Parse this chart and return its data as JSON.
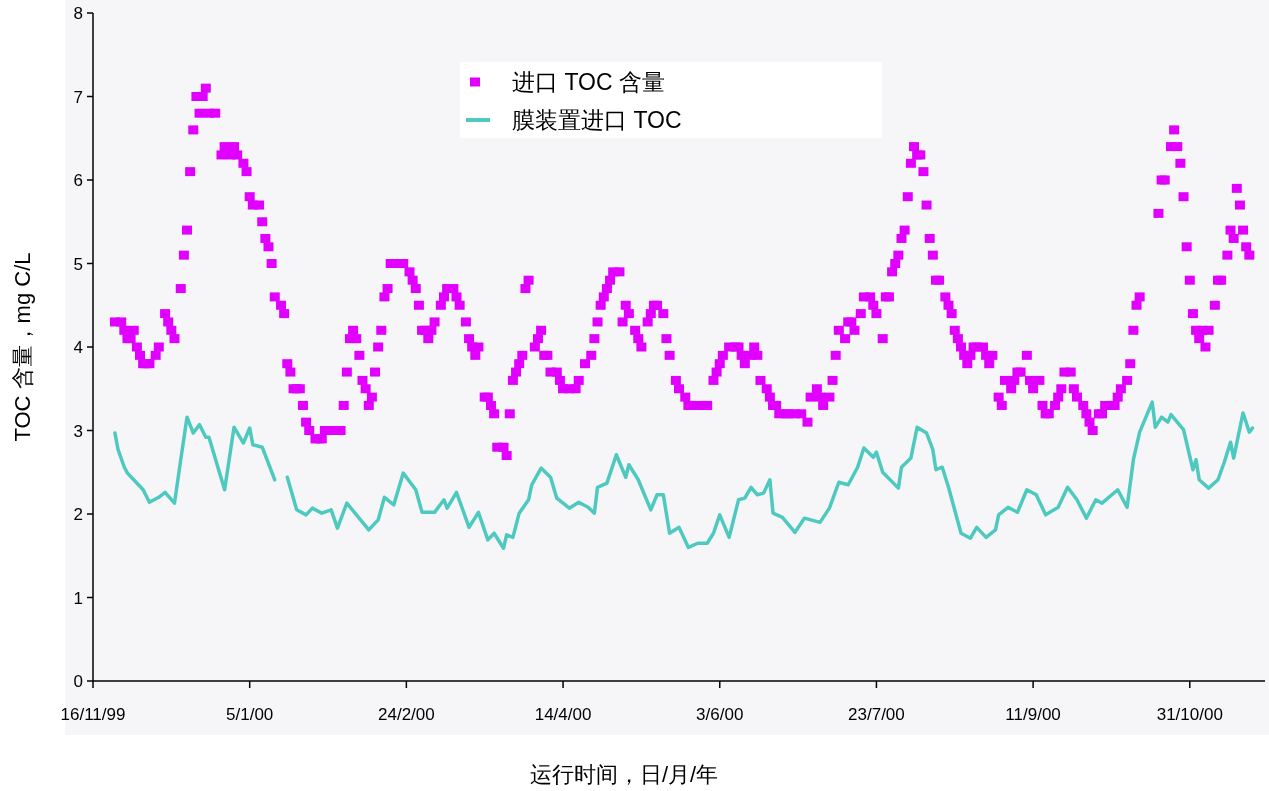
{
  "chart_data": {
    "type": "scatter",
    "xlabel": "运行时间，日/月/年",
    "ylabel": "TOC 含量，mg C/L",
    "xlim": [
      "1999-11-16",
      "2000-11-24"
    ],
    "ylim": [
      0,
      8
    ],
    "yticks": [
      0,
      1,
      2,
      3,
      4,
      5,
      6,
      7,
      8
    ],
    "xticks": [
      {
        "value": "1999-11-16",
        "label": "16/11/99"
      },
      {
        "value": "2000-01-05",
        "label": "5/1/00"
      },
      {
        "value": "2000-02-24",
        "label": "24/2/00"
      },
      {
        "value": "2000-04-14",
        "label": "14/4/00"
      },
      {
        "value": "2000-06-03",
        "label": "3/6/00"
      },
      {
        "value": "2000-07-23",
        "label": "23/7/00"
      },
      {
        "value": "2000-09-11",
        "label": "11/9/00"
      },
      {
        "value": "2000-10-31",
        "label": "31/10/00"
      }
    ],
    "grid": false,
    "legend": "top",
    "series": [
      {
        "name": "进口 TOC 含量",
        "type": "scatter",
        "marker": "square",
        "color": "#e100ff",
        "x": [
          "1999-11-23",
          "1999-11-25",
          "1999-11-26",
          "1999-11-27",
          "1999-11-28",
          "1999-11-29",
          "1999-11-30",
          "1999-12-01",
          "1999-12-02",
          "1999-12-03",
          "1999-12-04",
          "1999-12-06",
          "1999-12-07",
          "1999-12-09",
          "1999-12-10",
          "1999-12-11",
          "1999-12-12",
          "1999-12-14",
          "1999-12-15",
          "1999-12-16",
          "1999-12-17",
          "1999-12-18",
          "1999-12-19",
          "1999-12-20",
          "1999-12-21",
          "1999-12-22",
          "1999-12-23",
          "1999-12-25",
          "1999-12-27",
          "1999-12-28",
          "1999-12-30",
          "1999-12-31",
          "2000-01-01",
          "2000-01-03",
          "2000-01-04",
          "2000-01-05",
          "2000-01-06",
          "2000-01-08",
          "2000-01-09",
          "2000-01-10",
          "2000-01-11",
          "2000-01-12",
          "2000-01-13",
          "2000-01-15",
          "2000-01-16",
          "2000-01-17",
          "2000-01-18",
          "2000-01-19",
          "2000-01-20",
          "2000-01-21",
          "2000-01-22",
          "2000-01-23",
          "2000-01-24",
          "2000-01-26",
          "2000-01-27",
          "2000-01-28",
          "2000-01-29",
          "2000-01-31",
          "2000-02-03",
          "2000-02-04",
          "2000-02-05",
          "2000-02-06",
          "2000-02-07",
          "2000-02-08",
          "2000-02-09",
          "2000-02-10",
          "2000-02-11",
          "2000-02-12",
          "2000-02-13",
          "2000-02-14",
          "2000-02-15",
          "2000-02-16",
          "2000-02-17",
          "2000-02-18",
          "2000-02-19",
          "2000-02-20",
          "2000-02-22",
          "2000-02-23",
          "2000-02-25",
          "2000-02-26",
          "2000-02-27",
          "2000-02-28",
          "2000-02-29",
          "2000-03-01",
          "2000-03-02",
          "2000-03-03",
          "2000-03-04",
          "2000-03-06",
          "2000-03-07",
          "2000-03-08",
          "2000-03-10",
          "2000-03-11",
          "2000-03-12",
          "2000-03-14",
          "2000-03-15",
          "2000-03-16",
          "2000-03-17",
          "2000-03-18",
          "2000-03-20",
          "2000-03-21",
          "2000-03-22",
          "2000-03-23",
          "2000-03-24",
          "2000-03-26",
          "2000-03-27",
          "2000-03-28",
          "2000-03-29",
          "2000-03-30",
          "2000-03-31",
          "2000-04-01",
          "2000-04-02",
          "2000-04-03",
          "2000-04-05",
          "2000-04-06",
          "2000-04-07",
          "2000-04-08",
          "2000-04-09",
          "2000-04-10",
          "2000-04-12",
          "2000-04-13",
          "2000-04-14",
          "2000-04-16",
          "2000-04-18",
          "2000-04-19",
          "2000-04-21",
          "2000-04-23",
          "2000-04-24",
          "2000-04-25",
          "2000-04-26",
          "2000-04-27",
          "2000-04-28",
          "2000-04-29",
          "2000-04-30",
          "2000-05-02",
          "2000-05-03",
          "2000-05-04",
          "2000-05-05",
          "2000-05-07",
          "2000-05-08",
          "2000-05-09",
          "2000-05-11",
          "2000-05-12",
          "2000-05-13",
          "2000-05-14",
          "2000-05-16",
          "2000-05-17",
          "2000-05-18",
          "2000-05-20",
          "2000-05-21",
          "2000-05-23",
          "2000-05-24",
          "2000-05-25",
          "2000-05-27",
          "2000-05-29",
          "2000-05-30",
          "2000-06-01",
          "2000-06-02",
          "2000-06-03",
          "2000-06-04",
          "2000-06-06",
          "2000-06-08",
          "2000-06-09",
          "2000-06-10",
          "2000-06-11",
          "2000-06-13",
          "2000-06-14",
          "2000-06-15",
          "2000-06-16",
          "2000-06-18",
          "2000-06-19",
          "2000-06-20",
          "2000-06-21",
          "2000-06-22",
          "2000-06-24",
          "2000-06-25",
          "2000-06-27",
          "2000-06-29",
          "2000-07-01",
          "2000-07-02",
          "2000-07-04",
          "2000-07-05",
          "2000-07-06",
          "2000-07-08",
          "2000-07-09",
          "2000-07-10",
          "2000-07-11",
          "2000-07-13",
          "2000-07-14",
          "2000-07-15",
          "2000-07-16",
          "2000-07-18",
          "2000-07-19",
          "2000-07-21",
          "2000-07-22",
          "2000-07-23",
          "2000-07-25",
          "2000-07-26",
          "2000-07-27",
          "2000-07-28",
          "2000-07-29",
          "2000-07-30",
          "2000-07-31",
          "2000-08-01",
          "2000-08-02",
          "2000-08-03",
          "2000-08-04",
          "2000-08-05",
          "2000-08-06",
          "2000-08-07",
          "2000-08-08",
          "2000-08-09",
          "2000-08-10",
          "2000-08-11",
          "2000-08-12",
          "2000-08-14",
          "2000-08-15",
          "2000-08-16",
          "2000-08-17",
          "2000-08-18",
          "2000-08-19",
          "2000-08-20",
          "2000-08-21",
          "2000-08-22",
          "2000-08-23",
          "2000-08-24",
          "2000-08-26",
          "2000-08-27",
          "2000-08-28",
          "2000-08-29",
          "2000-08-31",
          "2000-09-01",
          "2000-09-02",
          "2000-09-04",
          "2000-09-05",
          "2000-09-06",
          "2000-09-07",
          "2000-09-09",
          "2000-09-10",
          "2000-09-11",
          "2000-09-13",
          "2000-09-14",
          "2000-09-15",
          "2000-09-16",
          "2000-09-18",
          "2000-09-19",
          "2000-09-20",
          "2000-09-21",
          "2000-09-23",
          "2000-09-24",
          "2000-09-25",
          "2000-09-27",
          "2000-09-28",
          "2000-09-29",
          "2000-09-30",
          "2000-10-02",
          "2000-10-03",
          "2000-10-04",
          "2000-10-06",
          "2000-10-07",
          "2000-10-08",
          "2000-10-09",
          "2000-10-11",
          "2000-10-12",
          "2000-10-13",
          "2000-10-14",
          "2000-10-15",
          "2000-10-21",
          "2000-10-22",
          "2000-10-23",
          "2000-10-25",
          "2000-10-26",
          "2000-10-27",
          "2000-10-28",
          "2000-10-29",
          "2000-10-30",
          "2000-10-31",
          "2000-11-01",
          "2000-11-02",
          "2000-11-03",
          "2000-11-04",
          "2000-11-05",
          "2000-11-06",
          "2000-11-08",
          "2000-11-09",
          "2000-11-10",
          "2000-11-12",
          "2000-11-13",
          "2000-11-14",
          "2000-11-15",
          "2000-11-16",
          "2000-11-17",
          "2000-11-18",
          "2000-11-19"
        ],
        "values": [
          4.3,
          4.3,
          4.2,
          4.1,
          4.1,
          4.2,
          4.0,
          3.9,
          3.8,
          3.8,
          3.8,
          3.9,
          4.0,
          4.4,
          4.3,
          4.2,
          4.1,
          4.7,
          5.1,
          5.4,
          6.1,
          6.6,
          7.0,
          6.8,
          7.0,
          7.1,
          6.8,
          6.8,
          6.3,
          6.4,
          6.3,
          6.4,
          6.3,
          6.2,
          6.1,
          5.8,
          5.7,
          5.7,
          5.5,
          5.3,
          5.2,
          5.0,
          4.6,
          4.5,
          4.4,
          3.8,
          3.7,
          3.5,
          3.5,
          3.5,
          3.3,
          3.1,
          3.0,
          2.9,
          2.9,
          2.9,
          3.0,
          3.0,
          3.0,
          3.3,
          3.7,
          4.1,
          4.2,
          4.1,
          3.9,
          3.6,
          3.5,
          3.3,
          3.4,
          3.7,
          4.0,
          4.2,
          4.6,
          4.7,
          5.0,
          5.0,
          5.0,
          5.0,
          4.9,
          4.8,
          4.7,
          4.5,
          4.2,
          4.2,
          4.1,
          4.2,
          4.3,
          4.5,
          4.6,
          4.7,
          4.7,
          4.6,
          4.5,
          4.3,
          4.1,
          4.0,
          3.9,
          4.0,
          3.4,
          3.4,
          3.3,
          3.2,
          2.8,
          2.8,
          2.7,
          3.2,
          3.6,
          3.7,
          3.8,
          3.9,
          4.7,
          4.8,
          4.0,
          4.1,
          4.2,
          3.9,
          3.9,
          3.7,
          3.7,
          3.6,
          3.5,
          3.5,
          3.5,
          3.6,
          3.8,
          3.9,
          4.1,
          4.3,
          4.5,
          4.6,
          4.7,
          4.8,
          4.9,
          4.9,
          4.3,
          4.5,
          4.4,
          4.2,
          4.1,
          4.0,
          4.3,
          4.4,
          4.5,
          4.5,
          4.4,
          4.1,
          3.9,
          3.6,
          3.5,
          3.4,
          3.3,
          3.3,
          3.3,
          3.3,
          3.3,
          3.6,
          3.7,
          3.8,
          3.9,
          4.0,
          4.0,
          4.0,
          3.9,
          3.8,
          3.9,
          4.0,
          3.9,
          3.6,
          3.5,
          3.4,
          3.3,
          3.3,
          3.2,
          3.2,
          3.2,
          3.2,
          3.2,
          3.1,
          3.4,
          3.5,
          3.4,
          3.3,
          3.4,
          3.6,
          3.9,
          4.2,
          4.1,
          4.3,
          4.3,
          4.2,
          4.4,
          4.6,
          4.6,
          4.5,
          4.4,
          4.1,
          4.6,
          4.6,
          4.9,
          5.0,
          5.1,
          5.3,
          5.4,
          5.8,
          6.2,
          6.4,
          6.3,
          6.3,
          6.1,
          5.7,
          5.3,
          5.1,
          4.8,
          4.8,
          4.6,
          4.5,
          4.4,
          4.2,
          4.1,
          4.0,
          3.9,
          3.8,
          3.9,
          4.0,
          4.0,
          4.0,
          3.9,
          3.8,
          3.9,
          3.4,
          3.3,
          3.6,
          3.5,
          3.6,
          3.7,
          3.7,
          3.9,
          3.6,
          3.5,
          3.6,
          3.3,
          3.2,
          3.2,
          3.3,
          3.4,
          3.5,
          3.7,
          3.7,
          3.5,
          3.4,
          3.3,
          3.2,
          3.1,
          3.0,
          3.2,
          3.2,
          3.3,
          3.3,
          3.3,
          3.4,
          3.5,
          3.6,
          3.8,
          4.2,
          4.5,
          4.6,
          5.6,
          6.0,
          6.0,
          6.4,
          6.6,
          6.4,
          6.2,
          5.8,
          5.2,
          4.8,
          4.4,
          4.2,
          4.1,
          4.2,
          4.0,
          4.2,
          4.5,
          4.8,
          4.8,
          5.1,
          5.4,
          5.3,
          5.9,
          5.7,
          5.4,
          5.2,
          5.1
        ]
      },
      {
        "name": "膜装置进口 TOC",
        "type": "line",
        "color": "#4dc9bf",
        "x": [
          "1999-11-23",
          "1999-11-24",
          "1999-11-26",
          "1999-11-27",
          "1999-11-29",
          "1999-12-02",
          "1999-12-04",
          "1999-12-07",
          "1999-12-09",
          "1999-12-12",
          "1999-12-14",
          "1999-12-16",
          "1999-12-18",
          "1999-12-20",
          "1999-12-22",
          "1999-12-23",
          "1999-12-28",
          "1999-12-31",
          "2000-01-03",
          "2000-01-05",
          "2000-01-06",
          "2000-01-09",
          "2000-01-13",
          "2000-01-15",
          "2000-01-17",
          "2000-01-20",
          "2000-01-23",
          "2000-01-25",
          "2000-01-28",
          "2000-01-31",
          "2000-02-02",
          "2000-02-05",
          "2000-02-12",
          "2000-02-15",
          "2000-02-17",
          "2000-02-20",
          "2000-02-23",
          "2000-02-27",
          "2000-02-29",
          "2000-03-04",
          "2000-03-07",
          "2000-03-08",
          "2000-03-11",
          "2000-03-15",
          "2000-03-18",
          "2000-03-21",
          "2000-03-23",
          "2000-03-26",
          "2000-03-27",
          "2000-03-29",
          "2000-03-31",
          "2000-04-03",
          "2000-04-04",
          "2000-04-07",
          "2000-04-10",
          "2000-04-12",
          "2000-04-16",
          "2000-04-19",
          "2000-04-22",
          "2000-04-24",
          "2000-04-25",
          "2000-04-28",
          "2000-05-01",
          "2000-05-04",
          "2000-05-05",
          "2000-05-08",
          "2000-05-12",
          "2000-05-14",
          "2000-05-16",
          "2000-05-18",
          "2000-05-21",
          "2000-05-24",
          "2000-05-27",
          "2000-05-30",
          "2000-06-01",
          "2000-06-03",
          "2000-06-06",
          "2000-06-09",
          "2000-06-11",
          "2000-06-13",
          "2000-06-15",
          "2000-06-17",
          "2000-06-19",
          "2000-06-20",
          "2000-06-23",
          "2000-06-27",
          "2000-06-30",
          "2000-07-05",
          "2000-07-08",
          "2000-07-11",
          "2000-07-14",
          "2000-07-17",
          "2000-07-19",
          "2000-07-22",
          "2000-07-23",
          "2000-07-25",
          "2000-07-30",
          "2000-07-31",
          "2000-08-03",
          "2000-08-05",
          "2000-08-08",
          "2000-08-10",
          "2000-08-11",
          "2000-08-13",
          "2000-08-15",
          "2000-08-19",
          "2000-08-22",
          "2000-08-24",
          "2000-08-27",
          "2000-08-30",
          "2000-08-31",
          "2000-09-03",
          "2000-09-06",
          "2000-09-09",
          "2000-09-12",
          "2000-09-15",
          "2000-09-19",
          "2000-09-22",
          "2000-09-25",
          "2000-09-28",
          "2000-10-01",
          "2000-10-03",
          "2000-10-08",
          "2000-10-11",
          "2000-10-13",
          "2000-10-15",
          "2000-10-19",
          "2000-10-20",
          "2000-10-22",
          "2000-10-24",
          "2000-10-25",
          "2000-10-29",
          "2000-11-01",
          "2000-11-02",
          "2000-11-03",
          "2000-11-06",
          "2000-11-09",
          "2000-11-11",
          "2000-11-13",
          "2000-11-14",
          "2000-11-17",
          "2000-11-19",
          "2000-11-20"
        ],
        "values": [
          2.97,
          2.77,
          2.56,
          2.49,
          2.41,
          2.29,
          2.14,
          2.2,
          2.26,
          2.13,
          2.65,
          3.16,
          2.97,
          3.07,
          2.92,
          2.92,
          2.29,
          3.04,
          2.85,
          3.03,
          2.83,
          2.8,
          2.41,
          null,
          2.44,
          2.05,
          1.99,
          2.07,
          2.01,
          2.05,
          1.83,
          2.13,
          1.81,
          1.93,
          2.2,
          2.11,
          2.49,
          2.29,
          2.02,
          2.02,
          2.17,
          2.07,
          2.26,
          1.84,
          2.02,
          1.69,
          1.77,
          1.59,
          1.75,
          1.72,
          2.01,
          2.17,
          2.35,
          2.55,
          2.44,
          2.19,
          2.07,
          2.14,
          2.08,
          2.01,
          2.32,
          2.37,
          2.71,
          2.44,
          2.59,
          2.41,
          2.05,
          2.23,
          2.23,
          1.77,
          1.84,
          1.6,
          1.65,
          1.65,
          1.77,
          1.99,
          1.72,
          2.17,
          2.19,
          2.32,
          2.23,
          2.25,
          2.41,
          2.01,
          1.96,
          1.78,
          1.95,
          1.9,
          2.07,
          2.38,
          2.35,
          2.56,
          2.79,
          2.68,
          2.74,
          2.5,
          2.31,
          2.56,
          2.67,
          3.04,
          2.97,
          2.77,
          2.53,
          2.56,
          2.32,
          1.77,
          1.71,
          1.84,
          1.72,
          1.81,
          1.99,
          2.08,
          2.02,
          2.29,
          2.23,
          1.99,
          2.08,
          2.32,
          2.17,
          1.95,
          2.17,
          2.13,
          2.29,
          2.08,
          2.65,
          2.98,
          3.34,
          3.04,
          3.16,
          3.1,
          3.19,
          3.01,
          2.53,
          2.65,
          2.41,
          2.31,
          2.41,
          2.62,
          2.86,
          2.67,
          3.21,
          2.98,
          3.03
        ]
      }
    ]
  }
}
